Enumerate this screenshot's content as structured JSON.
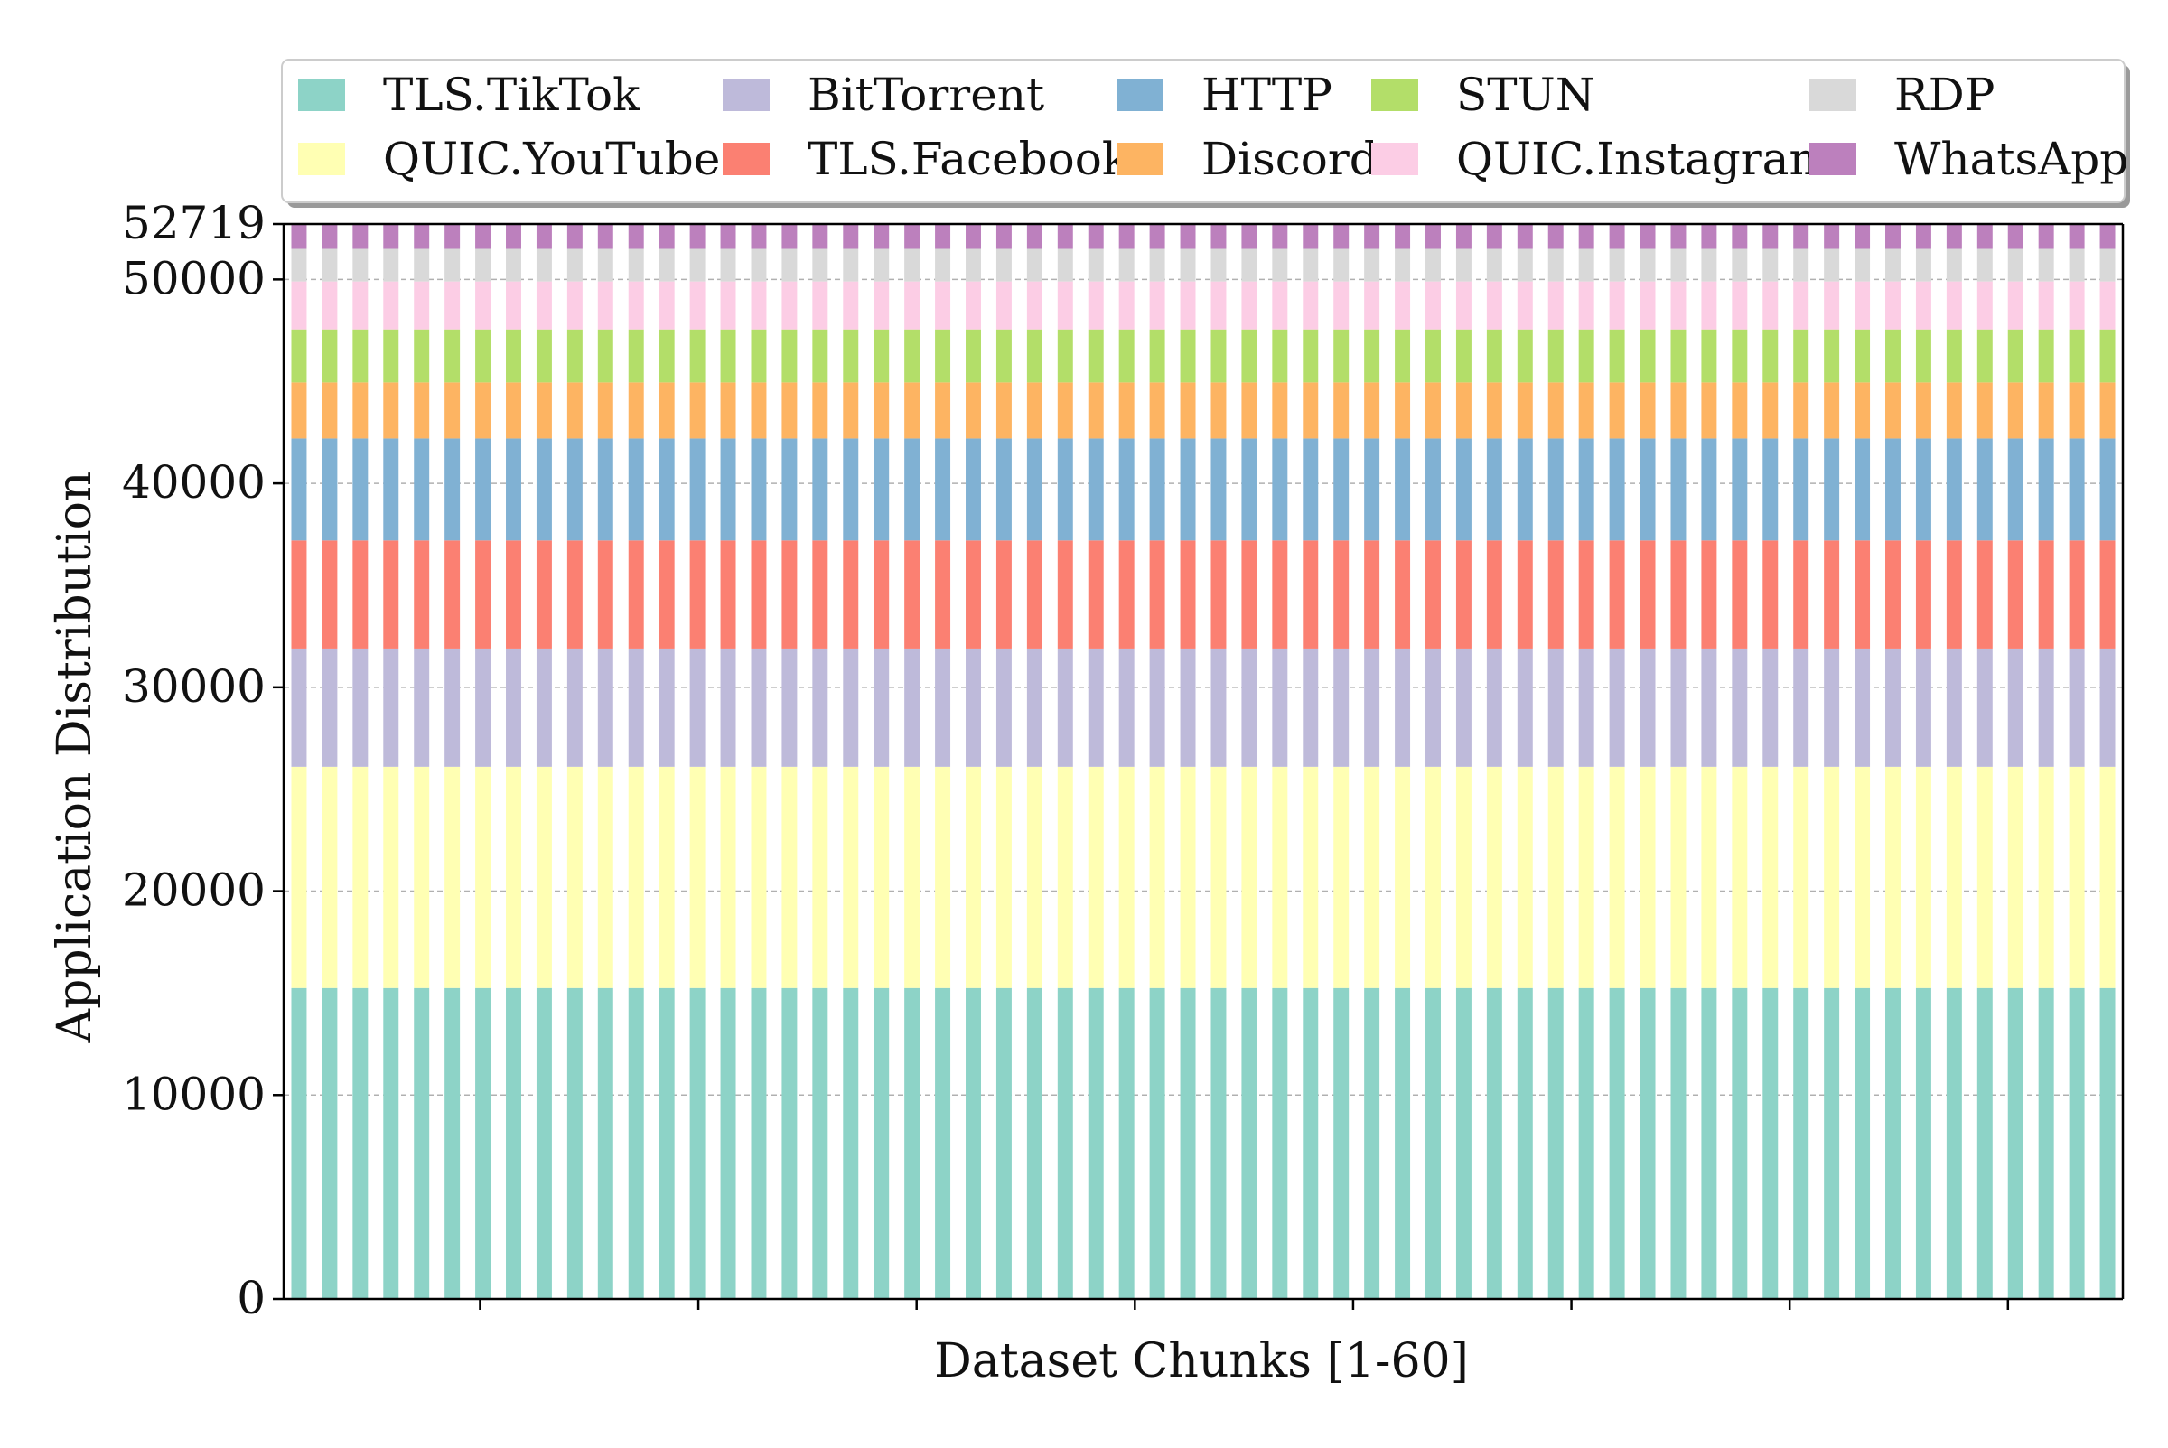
{
  "chart_data": {
    "type": "bar",
    "stacked": true,
    "title": "",
    "xlabel": "Dataset Chunks [1-60]",
    "ylabel": "Application Distribution",
    "ylim": [
      0,
      52719
    ],
    "yticks": [
      0,
      10000,
      20000,
      30000,
      40000,
      50000,
      52719
    ],
    "ytick_labels": [
      "0",
      "10000",
      "20000",
      "30000",
      "40000",
      "50000",
      "52719"
    ],
    "num_categories": 60,
    "x_tick_labels_shown": false,
    "grid": {
      "y": true,
      "style": "dashed"
    },
    "legend_position": "top",
    "series": [
      {
        "name": "TLS.TikTok",
        "color": "#8dd3c7",
        "value": 15250
      },
      {
        "name": "QUIC.YouTube",
        "color": "#ffffb3",
        "value": 10850
      },
      {
        "name": "BitTorrent",
        "color": "#bebada",
        "value": 5800
      },
      {
        "name": "TLS.Facebook",
        "color": "#fb8072",
        "value": 5300
      },
      {
        "name": "HTTP",
        "color": "#80b1d3",
        "value": 5000
      },
      {
        "name": "Discord",
        "color": "#fdb462",
        "value": 2750
      },
      {
        "name": "STUN",
        "color": "#b3de69",
        "value": 2600
      },
      {
        "name": "QUIC.Instagram",
        "color": "#fccde5",
        "value": 2350
      },
      {
        "name": "RDP",
        "color": "#d9d9d9",
        "value": 1600
      },
      {
        "name": "WhatsApp",
        "color": "#bc80bd",
        "value": 1219
      }
    ]
  }
}
